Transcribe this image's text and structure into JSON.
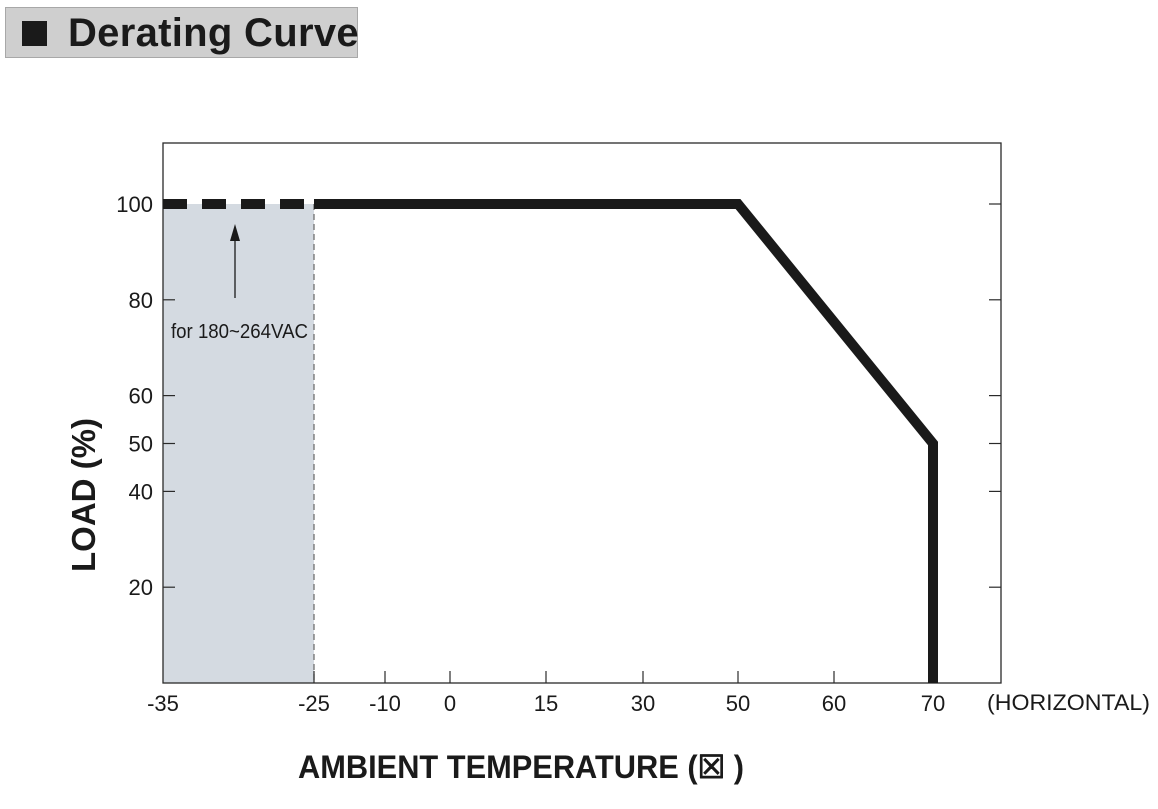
{
  "title": "Derating Curve",
  "chart_data": {
    "type": "line",
    "xlabel": "AMBIENT TEMPERATURE (☒  )",
    "ylabel": "LOAD (%)",
    "x_suffix": "(HORIZONTAL)",
    "x_ticks": [
      -35,
      -25,
      -10,
      0,
      15,
      30,
      50,
      60,
      70
    ],
    "y_ticks": [
      20,
      40,
      50,
      60,
      80,
      100
    ],
    "xlim": [
      -35,
      70
    ],
    "ylim": [
      0,
      100
    ],
    "grid": false,
    "annotation": "for 180~264VAC",
    "shaded_region": {
      "x_start": -35,
      "x_end": -25
    },
    "series": [
      {
        "style": "solid",
        "points": [
          [
            -25,
            100
          ],
          [
            50,
            100
          ],
          [
            70,
            50
          ],
          [
            70,
            0
          ]
        ]
      },
      {
        "style": "dashed",
        "points": [
          [
            -35,
            100
          ],
          [
            -25,
            100
          ]
        ]
      }
    ],
    "colors": {
      "line": "#1a1a1a",
      "shade": "#d4dae1",
      "frame": "#2a2a2a"
    }
  }
}
